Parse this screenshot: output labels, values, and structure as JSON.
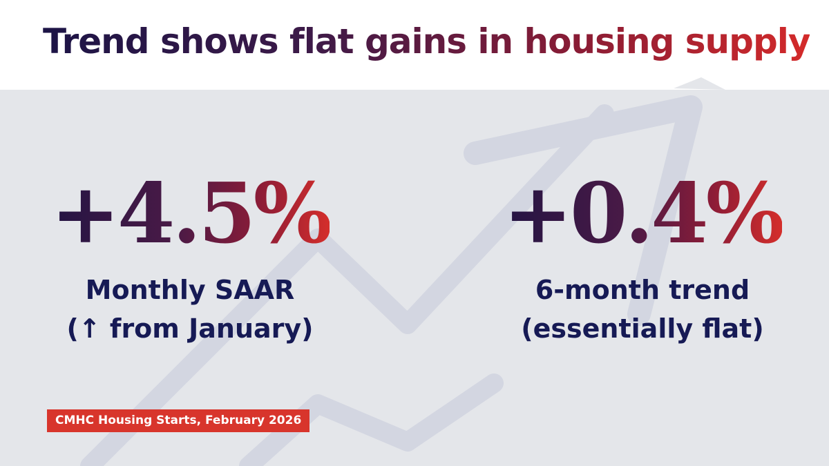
{
  "header": {
    "title": "Trend shows flat gains in housing supply"
  },
  "stats": [
    {
      "value": "+4.5%",
      "label_line1": "Monthly SAAR",
      "label_line2": "(↑ from January)"
    },
    {
      "value": "+0.4%",
      "label_line1": "6-month trend",
      "label_line2": "(essentially flat)"
    }
  ],
  "footer": {
    "source": "CMHC Housing Starts, February 2026"
  },
  "colors": {
    "navy": "#161a55",
    "plum": "#3d1a48",
    "red": "#d42a2a",
    "background": "#e4e6ea",
    "arrow": "#d3d6e1"
  },
  "decorations": {
    "background_icon": "trend-up-arrow-icon"
  }
}
